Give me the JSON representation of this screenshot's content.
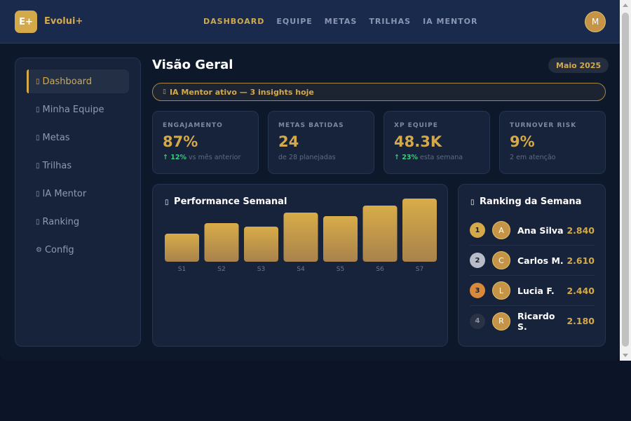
{
  "header": {
    "logo": "E+",
    "brand": "Evolui+",
    "nav": [
      "DASHBOARD",
      "EQUIPE",
      "METAS",
      "TRILHAS",
      "IA MENTOR"
    ],
    "avatar": "M"
  },
  "sidebar": {
    "items": [
      {
        "icon": "▯",
        "label": "Dashboard"
      },
      {
        "icon": "▯",
        "label": "Minha Equipe"
      },
      {
        "icon": "▯",
        "label": "Metas"
      },
      {
        "icon": "▯",
        "label": "Trilhas"
      },
      {
        "icon": "▯",
        "label": "IA Mentor"
      },
      {
        "icon": "▯",
        "label": "Ranking"
      },
      {
        "icon": "⚙",
        "label": "Config"
      }
    ]
  },
  "main": {
    "title": "Visão Geral",
    "month": "Maio 2025",
    "banner": {
      "icon": "▯",
      "text": "IA Mentor ativo — 3 insights hoje"
    }
  },
  "kpis": [
    {
      "label": "ENGAJAMENTO",
      "value": "87%",
      "delta": "↑ 12%",
      "sub": " vs mês anterior"
    },
    {
      "label": "METAS BATIDAS",
      "value": "24",
      "delta": "",
      "sub": "de 28 planejadas"
    },
    {
      "label": "XP EQUIPE",
      "value": "48.3K",
      "delta": "↑ 23%",
      "sub": " esta semana"
    },
    {
      "label": "TURNOVER RISK",
      "value": "9%",
      "delta": "",
      "sub": "2 em atenção"
    }
  ],
  "performance": {
    "icon": "▯",
    "title": "Performance Semanal"
  },
  "chart_data": {
    "type": "bar",
    "categories": [
      "S1",
      "S2",
      "S3",
      "S4",
      "S5",
      "S6",
      "S7"
    ],
    "values": [
      40,
      55,
      50,
      70,
      65,
      80,
      90
    ],
    "ylim": [
      0,
      90
    ]
  },
  "ranking": {
    "icon": "▯",
    "title": "Ranking da Semana",
    "rows": [
      {
        "pos": "1",
        "initial": "A",
        "name": "Ana Silva",
        "score": "2.840"
      },
      {
        "pos": "2",
        "initial": "C",
        "name": "Carlos M.",
        "score": "2.610"
      },
      {
        "pos": "3",
        "initial": "L",
        "name": "Lucia F.",
        "score": "2.440"
      },
      {
        "pos": "4",
        "initial": "R",
        "name": "Ricardo S.",
        "score": "2.180"
      }
    ]
  },
  "colors": {
    "accent": "#d4a94a",
    "positive": "#3ccb7f",
    "medal_gold": "#d4a94a",
    "medal_silver": "#b8bcc6",
    "medal_bronze": "#d88a3a",
    "medal_other": "#2a3346"
  }
}
